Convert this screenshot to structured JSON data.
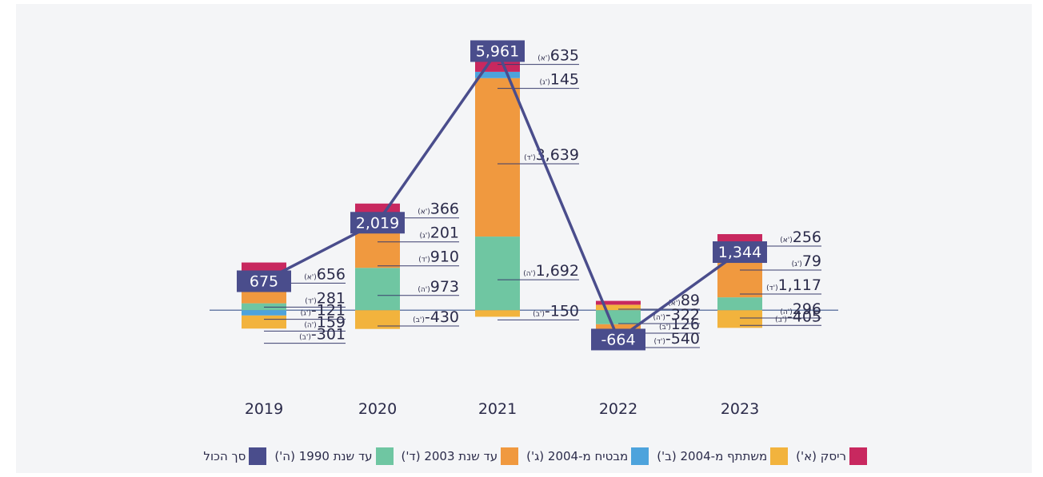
{
  "chart_data": {
    "type": "bar",
    "categories": [
      "2019",
      "2020",
      "2021",
      "2022",
      "2023"
    ],
    "series": [
      {
        "name": "ריסק (א')",
        "tag": "(א')",
        "color": "#c8285f",
        "values": [
          656,
          366,
          635,
          89,
          256
        ],
        "value_labels": [
          "656",
          "366",
          "635",
          "89",
          "256"
        ]
      },
      {
        "name": "משתתף מ-2004 (ב')",
        "tag": "(ב')",
        "color": "#f2b33d",
        "values": [
          -301,
          -430,
          -150,
          126,
          -405
        ],
        "value_labels": [
          "-301",
          "-430",
          "-150",
          "126",
          "-405"
        ]
      },
      {
        "name": "מבטיח מ-2004 (ג')",
        "tag": "(ג')",
        "color": "#4da3dc",
        "values": [
          -121,
          201,
          145,
          null,
          79
        ],
        "value_labels": [
          "-121",
          "201",
          "145",
          null,
          "79"
        ]
      },
      {
        "name": "עד שנת 2003 (ד')",
        "tag": "(ד')",
        "color": "#f0993f",
        "values": [
          281,
          910,
          3639,
          -540,
          1117
        ],
        "value_labels": [
          "281",
          "910",
          "3,639",
          "-540",
          "1,117"
        ]
      },
      {
        "name": "עד שנת 1990 (ה')",
        "tag": "(ה')",
        "color": "#6fc6a2",
        "values": [
          159,
          973,
          1692,
          -322,
          296
        ],
        "value_labels": [
          "159",
          "973",
          "1,692",
          "-322",
          "296"
        ]
      },
      {
        "name": "סך הכול",
        "type": "line",
        "color": "#4a4d8c",
        "values": [
          675,
          2019,
          5961,
          -664,
          1344
        ],
        "value_labels": [
          "675",
          "2,019",
          "5,961",
          "-664",
          "1,344"
        ]
      }
    ],
    "ylim": [
      -1500,
      6300
    ]
  }
}
